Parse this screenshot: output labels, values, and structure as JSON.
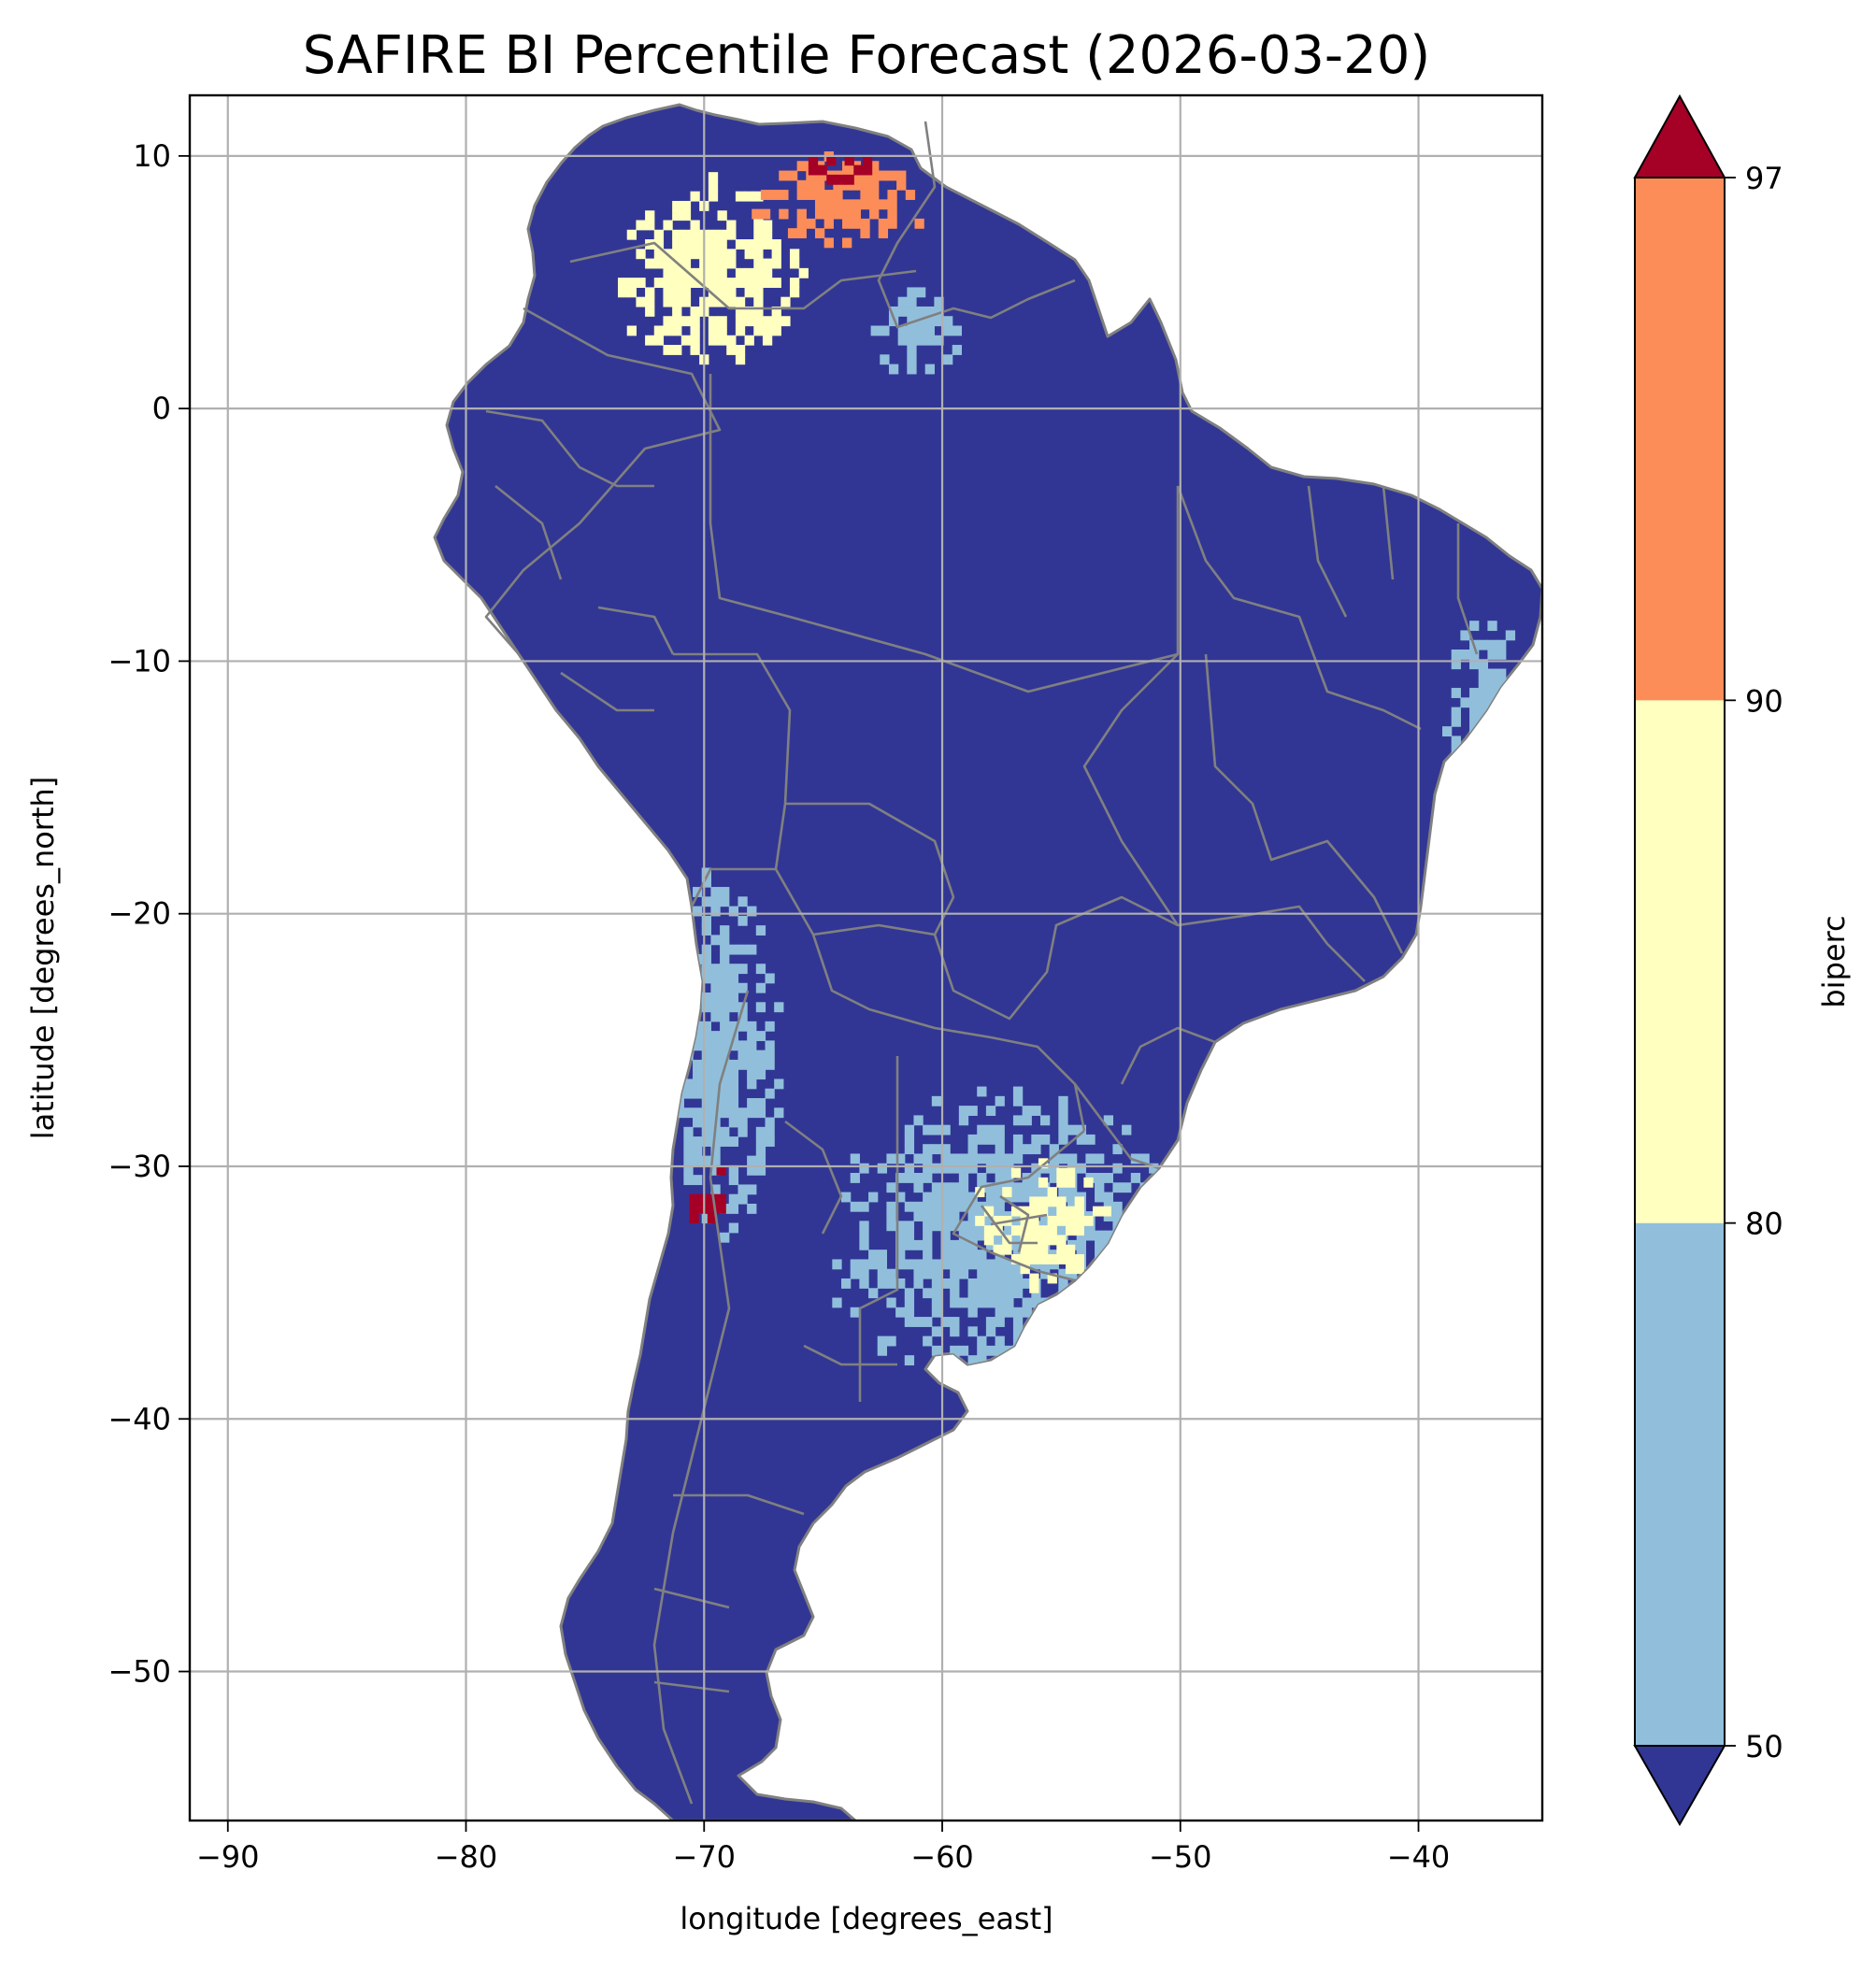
{
  "chart_data": {
    "type": "heatmap",
    "title": "SAFIRE BI Percentile Forecast (2026-03-20)",
    "xlabel": "longitude [degrees_east]",
    "ylabel": "latitude [degrees_north]",
    "xlim": [
      -91.6,
      -34.8
    ],
    "ylim": [
      -55.9,
      12.4
    ],
    "x_ticks": [
      -90,
      -80,
      -70,
      -60,
      -50,
      -40
    ],
    "y_ticks": [
      10,
      0,
      -10,
      -20,
      -30,
      -40,
      -50
    ],
    "x_tick_labels": [
      "−90",
      "−80",
      "−70",
      "−60",
      "−50",
      "−40"
    ],
    "y_tick_labels": [
      "10",
      "0",
      "−10",
      "−20",
      "−30",
      "−40",
      "−50"
    ],
    "grid": true,
    "colorbar": {
      "label": "biperc",
      "levels": [
        50,
        80,
        90,
        97
      ],
      "tick_labels": [
        "50",
        "80",
        "90",
        "97"
      ],
      "extend": "both",
      "colors": {
        "below_50": "#313695",
        "50_80": "#91bfdb",
        "80_90": "#ffffbf",
        "90_97": "#fc8d59",
        "above_97": "#a50026"
      }
    },
    "background_class_color": "#313695",
    "coastline_color": "#808080",
    "regions": [
      {
        "class": "80-90",
        "approx_lon": [
          -74,
          -66
        ],
        "approx_lat": [
          1,
          9
        ]
      },
      {
        "class": "90-97",
        "approx_lon": [
          -68,
          -61
        ],
        "approx_lat": [
          6,
          10
        ]
      },
      {
        "class": ">97",
        "approx_lon": [
          -66,
          -62
        ],
        "approx_lat": [
          8.5,
          10
        ]
      },
      {
        "class": "50-80",
        "approx_lon": [
          -63,
          -59
        ],
        "approx_lat": [
          1,
          4.5
        ]
      },
      {
        "class": "50-80",
        "approx_lon": [
          -39,
          -36
        ],
        "approx_lat": [
          -16,
          -8
        ]
      },
      {
        "class": "50-80",
        "approx_lon": [
          -72,
          -67
        ],
        "approx_lat": [
          -33,
          -18
        ]
      },
      {
        "class": ">97",
        "approx_lon": [
          -71,
          -69
        ],
        "approx_lat": [
          -33,
          -30
        ]
      },
      {
        "class": "50-80",
        "approx_lon": [
          -65,
          -50
        ],
        "approx_lat": [
          -39,
          -27
        ]
      },
      {
        "class": "80-90",
        "approx_lon": [
          -59,
          -53
        ],
        "approx_lat": [
          -35,
          -30
        ]
      }
    ]
  }
}
